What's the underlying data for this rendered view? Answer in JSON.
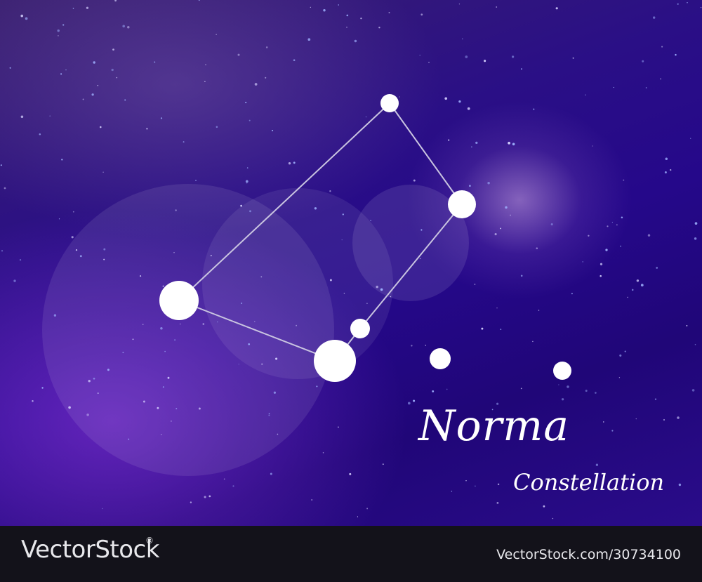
{
  "title": {
    "main": "Norma",
    "sub": "Constellation"
  },
  "footer": {
    "brand": "VectorStock",
    "registered": "®",
    "credit": "VectorStock.com/30734100"
  },
  "colors": {
    "sky_deep": "#25088a",
    "sky_glow": "#9a5fe0",
    "star": "#ffffff",
    "line": "#c9c4e0",
    "footer_bg": "#13121a"
  }
}
